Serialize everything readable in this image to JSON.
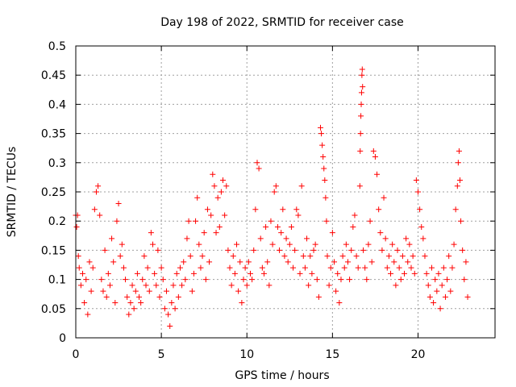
{
  "chart_data": {
    "type": "scatter",
    "title": "Day 198 of 2022, SRMTID for receiver case",
    "xlabel": "GPS time / hours",
    "ylabel": "SRMTID / TECUs",
    "xlim": [
      0,
      24.5
    ],
    "ylim": [
      0,
      0.5
    ],
    "x_ticks": [
      0,
      5,
      10,
      15,
      20
    ],
    "x_tick_labels": [
      "0",
      "5",
      "10",
      "15",
      "20"
    ],
    "y_ticks": [
      0,
      0.05,
      0.1,
      0.15,
      0.2,
      0.25,
      0.3,
      0.35,
      0.4,
      0.45,
      0.5
    ],
    "y_tick_labels": [
      "0",
      "0.05",
      "0.1",
      "0.15",
      "0.2",
      "0.25",
      "0.3",
      "0.35",
      "0.4",
      "0.45",
      "0.5"
    ],
    "grid": true,
    "marker": "+",
    "color": "#ff0000",
    "series": [
      {
        "name": "SRMTID",
        "points": [
          [
            0.0,
            0.21
          ],
          [
            0.05,
            0.19
          ],
          [
            0.1,
            0.21
          ],
          [
            0.15,
            0.14
          ],
          [
            0.2,
            0.12
          ],
          [
            0.3,
            0.09
          ],
          [
            0.4,
            0.11
          ],
          [
            0.5,
            0.06
          ],
          [
            0.6,
            0.1
          ],
          [
            0.7,
            0.04
          ],
          [
            0.8,
            0.13
          ],
          [
            0.9,
            0.08
          ],
          [
            1.0,
            0.12
          ],
          [
            1.1,
            0.22
          ],
          [
            1.2,
            0.25
          ],
          [
            1.3,
            0.26
          ],
          [
            1.4,
            0.21
          ],
          [
            1.5,
            0.1
          ],
          [
            1.6,
            0.08
          ],
          [
            1.7,
            0.15
          ],
          [
            1.8,
            0.07
          ],
          [
            1.9,
            0.11
          ],
          [
            2.0,
            0.09
          ],
          [
            2.1,
            0.17
          ],
          [
            2.2,
            0.13
          ],
          [
            2.3,
            0.06
          ],
          [
            2.4,
            0.2
          ],
          [
            2.5,
            0.23
          ],
          [
            2.6,
            0.14
          ],
          [
            2.7,
            0.16
          ],
          [
            2.8,
            0.12
          ],
          [
            2.9,
            0.1
          ],
          [
            3.0,
            0.07
          ],
          [
            3.1,
            0.04
          ],
          [
            3.2,
            0.06
          ],
          [
            3.3,
            0.09
          ],
          [
            3.4,
            0.05
          ],
          [
            3.5,
            0.08
          ],
          [
            3.6,
            0.11
          ],
          [
            3.7,
            0.07
          ],
          [
            3.8,
            0.06
          ],
          [
            3.9,
            0.1
          ],
          [
            4.0,
            0.14
          ],
          [
            4.1,
            0.09
          ],
          [
            4.2,
            0.12
          ],
          [
            4.3,
            0.08
          ],
          [
            4.4,
            0.18
          ],
          [
            4.5,
            0.16
          ],
          [
            4.6,
            0.11
          ],
          [
            4.7,
            0.09
          ],
          [
            4.8,
            0.15
          ],
          [
            4.9,
            0.07
          ],
          [
            5.0,
            0.12
          ],
          [
            5.1,
            0.1
          ],
          [
            5.2,
            0.05
          ],
          [
            5.3,
            0.08
          ],
          [
            5.4,
            0.04
          ],
          [
            5.5,
            0.02
          ],
          [
            5.6,
            0.06
          ],
          [
            5.7,
            0.09
          ],
          [
            5.8,
            0.05
          ],
          [
            5.9,
            0.11
          ],
          [
            6.0,
            0.07
          ],
          [
            6.1,
            0.12
          ],
          [
            6.2,
            0.09
          ],
          [
            6.3,
            0.13
          ],
          [
            6.4,
            0.1
          ],
          [
            6.5,
            0.17
          ],
          [
            6.6,
            0.2
          ],
          [
            6.7,
            0.14
          ],
          [
            6.8,
            0.08
          ],
          [
            6.9,
            0.11
          ],
          [
            7.0,
            0.2
          ],
          [
            7.1,
            0.24
          ],
          [
            7.2,
            0.16
          ],
          [
            7.3,
            0.12
          ],
          [
            7.4,
            0.14
          ],
          [
            7.5,
            0.18
          ],
          [
            7.6,
            0.1
          ],
          [
            7.7,
            0.22
          ],
          [
            7.8,
            0.13
          ],
          [
            7.9,
            0.21
          ],
          [
            8.0,
            0.28
          ],
          [
            8.1,
            0.26
          ],
          [
            8.2,
            0.18
          ],
          [
            8.3,
            0.24
          ],
          [
            8.4,
            0.19
          ],
          [
            8.5,
            0.25
          ],
          [
            8.6,
            0.27
          ],
          [
            8.7,
            0.21
          ],
          [
            8.8,
            0.26
          ],
          [
            8.9,
            0.15
          ],
          [
            9.0,
            0.12
          ],
          [
            9.1,
            0.09
          ],
          [
            9.2,
            0.14
          ],
          [
            9.3,
            0.11
          ],
          [
            9.4,
            0.16
          ],
          [
            9.5,
            0.08
          ],
          [
            9.6,
            0.13
          ],
          [
            9.7,
            0.06
          ],
          [
            9.8,
            0.1
          ],
          [
            9.9,
            0.12
          ],
          [
            10.0,
            0.09
          ],
          [
            10.1,
            0.13
          ],
          [
            10.2,
            0.11
          ],
          [
            10.3,
            0.1
          ],
          [
            10.4,
            0.15
          ],
          [
            10.5,
            0.22
          ],
          [
            10.6,
            0.3
          ],
          [
            10.7,
            0.29
          ],
          [
            10.8,
            0.17
          ],
          [
            10.9,
            0.12
          ],
          [
            11.0,
            0.11
          ],
          [
            11.1,
            0.19
          ],
          [
            11.2,
            0.13
          ],
          [
            11.3,
            0.09
          ],
          [
            11.4,
            0.2
          ],
          [
            11.5,
            0.16
          ],
          [
            11.6,
            0.25
          ],
          [
            11.7,
            0.26
          ],
          [
            11.8,
            0.19
          ],
          [
            11.9,
            0.15
          ],
          [
            12.0,
            0.18
          ],
          [
            12.1,
            0.22
          ],
          [
            12.2,
            0.14
          ],
          [
            12.3,
            0.17
          ],
          [
            12.4,
            0.13
          ],
          [
            12.5,
            0.16
          ],
          [
            12.6,
            0.19
          ],
          [
            12.7,
            0.12
          ],
          [
            12.8,
            0.15
          ],
          [
            12.9,
            0.22
          ],
          [
            13.0,
            0.21
          ],
          [
            13.1,
            0.11
          ],
          [
            13.2,
            0.26
          ],
          [
            13.3,
            0.14
          ],
          [
            13.4,
            0.12
          ],
          [
            13.5,
            0.17
          ],
          [
            13.6,
            0.09
          ],
          [
            13.7,
            0.14
          ],
          [
            13.8,
            0.11
          ],
          [
            13.9,
            0.15
          ],
          [
            14.0,
            0.16
          ],
          [
            14.1,
            0.1
          ],
          [
            14.2,
            0.07
          ],
          [
            14.3,
            0.36
          ],
          [
            14.35,
            0.35
          ],
          [
            14.4,
            0.33
          ],
          [
            14.45,
            0.31
          ],
          [
            14.5,
            0.29
          ],
          [
            14.55,
            0.27
          ],
          [
            14.6,
            0.24
          ],
          [
            14.65,
            0.2
          ],
          [
            14.7,
            0.14
          ],
          [
            14.8,
            0.09
          ],
          [
            14.9,
            0.12
          ],
          [
            15.0,
            0.18
          ],
          [
            15.1,
            0.13
          ],
          [
            15.2,
            0.08
          ],
          [
            15.3,
            0.11
          ],
          [
            15.4,
            0.06
          ],
          [
            15.5,
            0.1
          ],
          [
            15.6,
            0.14
          ],
          [
            15.7,
            0.12
          ],
          [
            15.8,
            0.16
          ],
          [
            15.9,
            0.13
          ],
          [
            16.0,
            0.1
          ],
          [
            16.1,
            0.15
          ],
          [
            16.2,
            0.19
          ],
          [
            16.3,
            0.21
          ],
          [
            16.4,
            0.14
          ],
          [
            16.5,
            0.12
          ],
          [
            16.6,
            0.26
          ],
          [
            16.62,
            0.32
          ],
          [
            16.64,
            0.35
          ],
          [
            16.66,
            0.38
          ],
          [
            16.68,
            0.4
          ],
          [
            16.7,
            0.42
          ],
          [
            16.72,
            0.45
          ],
          [
            16.74,
            0.46
          ],
          [
            16.76,
            0.43
          ],
          [
            16.8,
            0.15
          ],
          [
            16.9,
            0.12
          ],
          [
            17.0,
            0.1
          ],
          [
            17.1,
            0.16
          ],
          [
            17.2,
            0.2
          ],
          [
            17.3,
            0.13
          ],
          [
            17.4,
            0.32
          ],
          [
            17.5,
            0.31
          ],
          [
            17.6,
            0.28
          ],
          [
            17.7,
            0.22
          ],
          [
            17.8,
            0.18
          ],
          [
            17.9,
            0.15
          ],
          [
            18.0,
            0.24
          ],
          [
            18.1,
            0.17
          ],
          [
            18.2,
            0.12
          ],
          [
            18.3,
            0.14
          ],
          [
            18.4,
            0.11
          ],
          [
            18.5,
            0.16
          ],
          [
            18.6,
            0.13
          ],
          [
            18.7,
            0.09
          ],
          [
            18.8,
            0.15
          ],
          [
            18.9,
            0.12
          ],
          [
            19.0,
            0.1
          ],
          [
            19.1,
            0.14
          ],
          [
            19.2,
            0.11
          ],
          [
            19.3,
            0.17
          ],
          [
            19.4,
            0.13
          ],
          [
            19.5,
            0.16
          ],
          [
            19.6,
            0.12
          ],
          [
            19.7,
            0.14
          ],
          [
            19.8,
            0.11
          ],
          [
            19.9,
            0.27
          ],
          [
            20.0,
            0.25
          ],
          [
            20.1,
            0.22
          ],
          [
            20.2,
            0.19
          ],
          [
            20.3,
            0.17
          ],
          [
            20.4,
            0.14
          ],
          [
            20.5,
            0.11
          ],
          [
            20.6,
            0.09
          ],
          [
            20.7,
            0.07
          ],
          [
            20.8,
            0.12
          ],
          [
            20.9,
            0.06
          ],
          [
            21.0,
            0.1
          ],
          [
            21.1,
            0.08
          ],
          [
            21.2,
            0.11
          ],
          [
            21.3,
            0.05
          ],
          [
            21.4,
            0.09
          ],
          [
            21.5,
            0.12
          ],
          [
            21.6,
            0.07
          ],
          [
            21.7,
            0.1
          ],
          [
            21.8,
            0.14
          ],
          [
            21.9,
            0.08
          ],
          [
            22.0,
            0.12
          ],
          [
            22.1,
            0.16
          ],
          [
            22.2,
            0.22
          ],
          [
            22.3,
            0.26
          ],
          [
            22.35,
            0.3
          ],
          [
            22.4,
            0.32
          ],
          [
            22.45,
            0.27
          ],
          [
            22.5,
            0.2
          ],
          [
            22.6,
            0.15
          ],
          [
            22.7,
            0.1
          ],
          [
            22.8,
            0.13
          ],
          [
            22.9,
            0.07
          ]
        ]
      }
    ]
  }
}
